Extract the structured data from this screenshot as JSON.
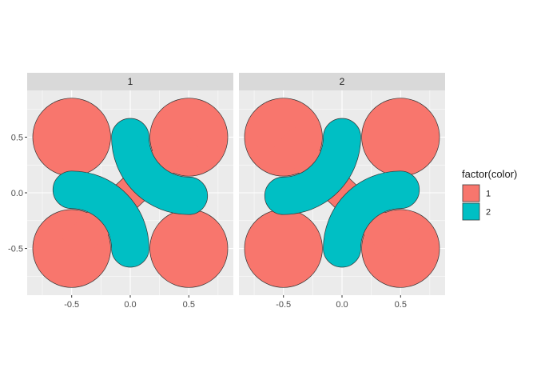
{
  "chart_data": {
    "type": "faceted-polygon-plot",
    "facet_variable": "color",
    "facets": [
      {
        "label": "1",
        "shapes": [
          {
            "group": "1",
            "name": "circle-upper-left",
            "center": [
              -0.5,
              0.5
            ],
            "radius": 0.33
          },
          {
            "group": "1",
            "name": "circle-upper-right",
            "center": [
              0.5,
              0.5
            ],
            "radius": 0.33
          },
          {
            "group": "1",
            "name": "circle-lower-left",
            "center": [
              -0.5,
              -0.5
            ],
            "radius": 0.33
          },
          {
            "group": "1",
            "name": "lobe-lower-right",
            "center": [
              0.5,
              -0.5
            ],
            "radius": 0.33,
            "neck_from": [
              0.0,
              0.0
            ]
          },
          {
            "group": "1",
            "name": "lobe-center",
            "from": [
              -0.5,
              -0.5
            ],
            "to": [
              0.5,
              0.5
            ],
            "width": 0.13
          },
          {
            "group": "2",
            "name": "crescent-upper",
            "arc_center": [
              0.5,
              0.5
            ],
            "arc_radius": 0.5,
            "start_deg": 180,
            "end_deg": 270,
            "thickness": 0.32
          },
          {
            "group": "2",
            "name": "crescent-lower",
            "arc_center": [
              -0.5,
              -0.5
            ],
            "arc_radius": 0.5,
            "start_deg": 0,
            "end_deg": 90,
            "thickness": 0.32
          }
        ]
      },
      {
        "label": "2",
        "shapes": [
          {
            "group": "1",
            "name": "circle-upper-left",
            "center": [
              -0.5,
              0.5
            ],
            "radius": 0.33
          },
          {
            "group": "1",
            "name": "circle-upper-right",
            "center": [
              0.5,
              0.5
            ],
            "radius": 0.33
          },
          {
            "group": "1",
            "name": "circle-lower-left",
            "center": [
              -0.5,
              -0.5
            ],
            "radius": 0.33
          },
          {
            "group": "1",
            "name": "circle-lower-right",
            "center": [
              0.5,
              -0.5
            ],
            "radius": 0.33
          },
          {
            "group": "1",
            "name": "lobe-center",
            "from": [
              -0.5,
              0.5
            ],
            "to": [
              0.5,
              -0.5
            ],
            "width": 0.13
          },
          {
            "group": "2",
            "name": "crescent-upper",
            "arc_center": [
              -0.5,
              0.5
            ],
            "arc_radius": 0.5,
            "start_deg": 270,
            "end_deg": 360,
            "thickness": 0.32
          },
          {
            "group": "2",
            "name": "crescent-lower",
            "arc_center": [
              0.5,
              -0.5
            ],
            "arc_radius": 0.5,
            "start_deg": 90,
            "end_deg": 180,
            "thickness": 0.32
          }
        ]
      }
    ],
    "xlim": [
      -0.88,
      0.88
    ],
    "ylim": [
      -0.92,
      0.92
    ],
    "x_ticks": [
      -0.5,
      0.0,
      0.5
    ],
    "x_tick_labels": [
      "-0.5",
      "0.0",
      "0.5"
    ],
    "y_ticks": [
      -0.5,
      0.0,
      0.5
    ],
    "y_tick_labels": [
      "-0.5",
      "0.0",
      "0.5"
    ],
    "grid": true,
    "xlabel": "",
    "ylabel": "",
    "legend": {
      "title": "factor(color)",
      "position": "right",
      "entries": [
        {
          "label": "1",
          "color": "#F8766D"
        },
        {
          "label": "2",
          "color": "#00BFC4"
        }
      ]
    }
  },
  "colors": {
    "panel_background": "#EBEBEB",
    "strip_background": "#D9D9D9",
    "grid_major": "#FFFFFF",
    "axis_text": "#4D4D4D",
    "outline": "#333333"
  }
}
